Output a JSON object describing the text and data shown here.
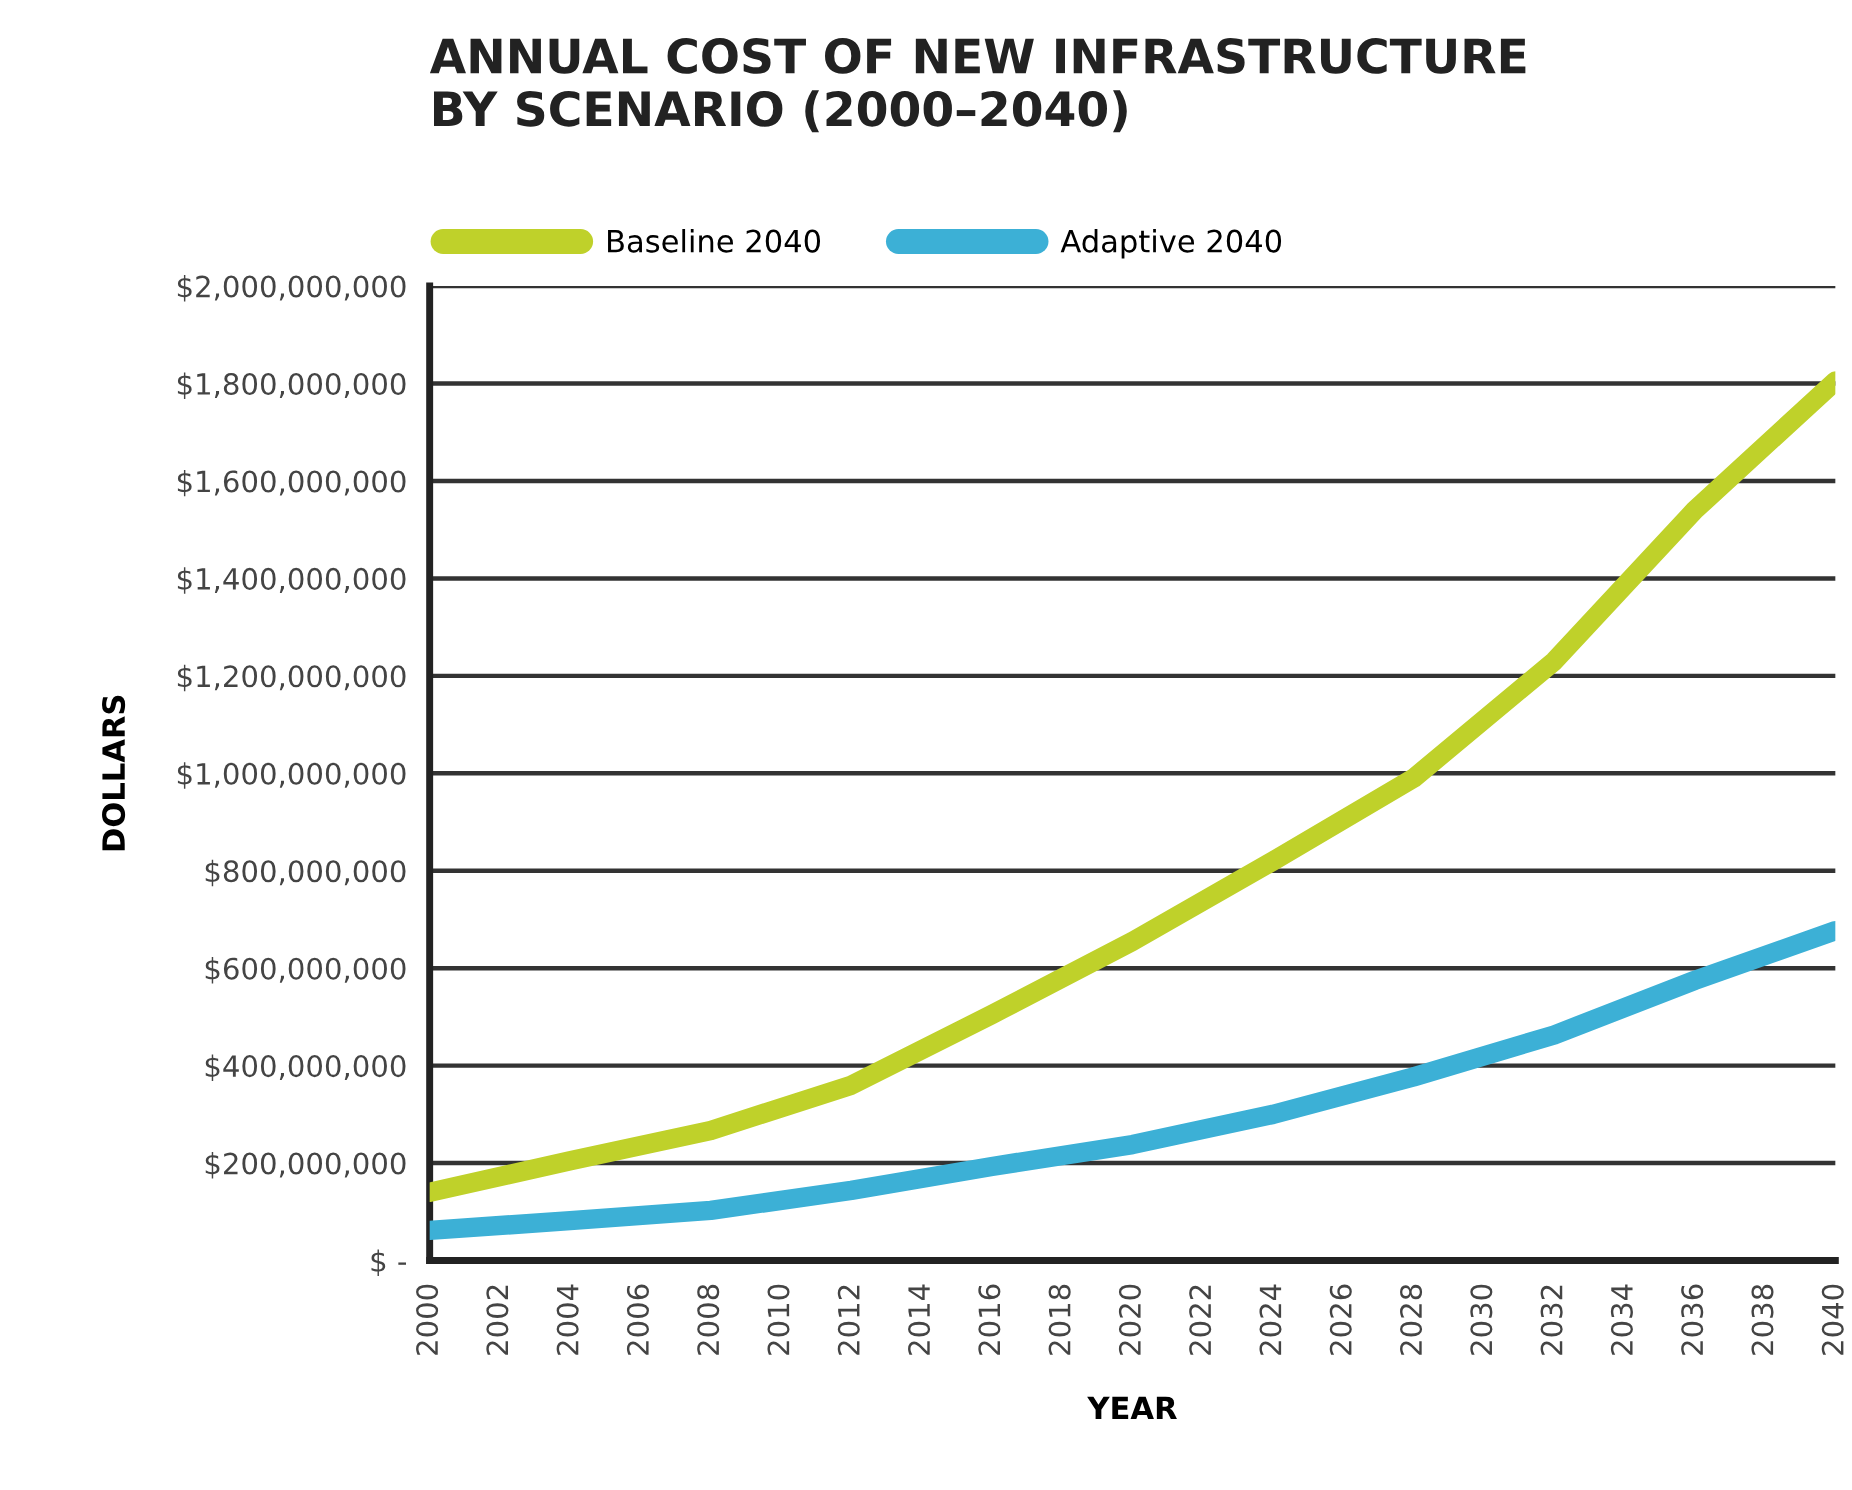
{
  "chart_data": {
    "type": "line",
    "title": "ANNUAL COST OF NEW INFRASTRUCTURE\nBY SCENARIO (2000–2040)",
    "xlabel": "YEAR",
    "ylabel": "DOLLARS",
    "x": [
      2000,
      2004,
      2008,
      2012,
      2016,
      2020,
      2024,
      2028,
      2032,
      2036,
      2040
    ],
    "series": [
      {
        "name": "Baseline 2040",
        "color": "#bfd12a",
        "values": [
          140000000,
          205000000,
          267000000,
          360000000,
          505000000,
          655000000,
          820000000,
          990000000,
          1230000000,
          1540000000,
          1805000000
        ]
      },
      {
        "name": "Adaptive 2040",
        "color": "#3cb0d6",
        "values": [
          62000000,
          82000000,
          103000000,
          144000000,
          193000000,
          238000000,
          300000000,
          377000000,
          463000000,
          575000000,
          677000000
        ]
      }
    ],
    "xlim": [
      2000,
      2040
    ],
    "xticks": [
      2000,
      2002,
      2004,
      2006,
      2008,
      2010,
      2012,
      2014,
      2016,
      2018,
      2020,
      2022,
      2024,
      2026,
      2028,
      2030,
      2032,
      2034,
      2036,
      2038,
      2040
    ],
    "ylim": [
      0,
      2000000000
    ],
    "yticks": [
      {
        "value": 0,
        "label": "$ -"
      },
      {
        "value": 200000000,
        "label": "$200,000,000"
      },
      {
        "value": 400000000,
        "label": "$400,000,000"
      },
      {
        "value": 600000000,
        "label": "$600,000,000"
      },
      {
        "value": 800000000,
        "label": "$800,000,000"
      },
      {
        "value": 1000000000,
        "label": "$1,000,000,000"
      },
      {
        "value": 1200000000,
        "label": "$1,200,000,000"
      },
      {
        "value": 1400000000,
        "label": "$1,400,000,000"
      },
      {
        "value": 1600000000,
        "label": "$1,600,000,000"
      },
      {
        "value": 1800000000,
        "label": "$1,800,000,000"
      },
      {
        "value": 2000000000,
        "label": "$2,000,000,000"
      }
    ],
    "grid": "y",
    "legend": "top left",
    "marker": "none",
    "line_style": "solid"
  }
}
